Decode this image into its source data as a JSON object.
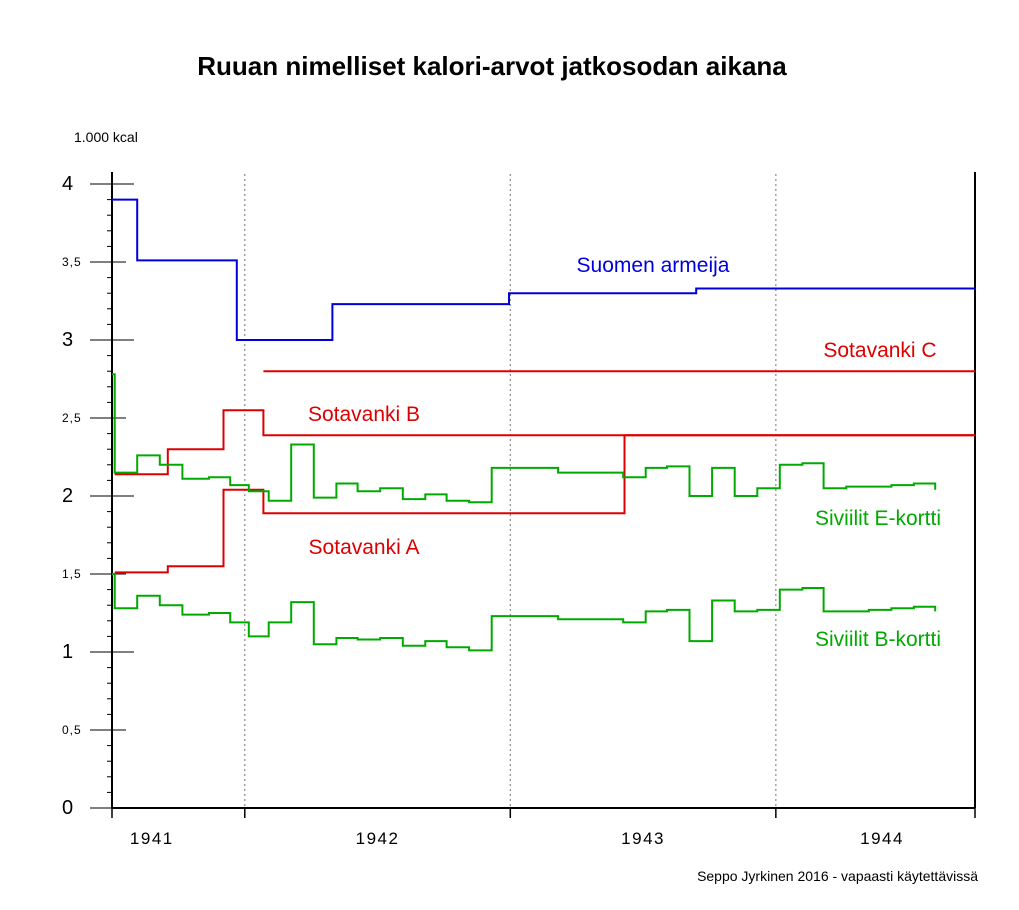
{
  "chart_data": {
    "type": "line",
    "step": "post",
    "title": "Ruuan nimelliset kalori-arvot jatkosodan aikana",
    "y_unit_label": "1.000 kcal",
    "credit": "Seppo Jyrkinen 2016 - vapaasti käytettävissä",
    "ylim": [
      0,
      4.15
    ],
    "x_range": [
      1941.5,
      1944.75
    ],
    "y_ticks": [
      {
        "value": 0,
        "label": "0",
        "major": true
      },
      {
        "value": 0.5,
        "label": "0,5",
        "major": false
      },
      {
        "value": 1,
        "label": "1",
        "major": true
      },
      {
        "value": 1.5,
        "label": "1,5",
        "major": false
      },
      {
        "value": 2,
        "label": "2",
        "major": true
      },
      {
        "value": 2.5,
        "label": "2,5",
        "major": false
      },
      {
        "value": 3,
        "label": "3",
        "major": true
      },
      {
        "value": 3.5,
        "label": "3,5",
        "major": false
      },
      {
        "value": 4,
        "label": "4",
        "major": true
      }
    ],
    "x_ticks": [
      {
        "value": 1941.65,
        "label": "1941"
      },
      {
        "value": 1942.5,
        "label": "1942"
      },
      {
        "value": 1943.5,
        "label": "1943"
      },
      {
        "value": 1944.4,
        "label": "1944"
      }
    ],
    "year_boundaries": [
      1942,
      1943,
      1944
    ],
    "grid": "vertical dotted at year boundaries",
    "colors": {
      "army": "#0000dd",
      "pow": "#dd0000",
      "civilian": "#00aa00"
    },
    "series": [
      {
        "name": "Suomen armeija",
        "color": "#0000dd",
        "x": [
          1941.5,
          1941.595,
          1941.97,
          1942.33,
          1942.995,
          1943.7,
          1944.75
        ],
        "y": [
          3.9,
          3.51,
          3.0,
          3.23,
          3.3,
          3.33,
          3.33
        ]
      },
      {
        "name": "Sotavanki C",
        "color": "#dd0000",
        "x": [
          1942.07,
          1944.75
        ],
        "y": [
          2.8,
          2.8
        ]
      },
      {
        "name": "Sotavanki B",
        "color": "#dd0000",
        "x": [
          1941.51,
          1941.71,
          1941.92,
          1942.07,
          1944.75
        ],
        "y": [
          2.14,
          2.3,
          2.55,
          2.39,
          2.39
        ]
      },
      {
        "name": "Sotavanki A",
        "color": "#dd0000",
        "x": [
          1941.51,
          1941.71,
          1941.92,
          1942.07,
          1943.43,
          1944.75
        ],
        "y": [
          1.51,
          1.55,
          2.04,
          1.89,
          2.39,
          2.39
        ]
      },
      {
        "name": "Siviilit E-kortti",
        "color": "#00aa00",
        "x": [
          1941.5,
          1941.51,
          1941.595,
          1941.68,
          1941.765,
          1941.865,
          1941.945,
          1942.015,
          1942.09,
          1942.175,
          1942.26,
          1942.345,
          1942.425,
          1942.51,
          1942.595,
          1942.68,
          1942.76,
          1942.845,
          1942.93,
          1943.18,
          1943.425,
          1943.51,
          1943.59,
          1943.675,
          1943.76,
          1943.845,
          1943.93,
          1944.015,
          1944.1,
          1944.18,
          1944.265,
          1944.35,
          1944.435,
          1944.52,
          1944.6
        ],
        "y": [
          2.78,
          2.15,
          2.26,
          2.2,
          2.11,
          2.12,
          2.07,
          2.03,
          1.97,
          2.33,
          1.99,
          2.08,
          2.03,
          2.05,
          1.98,
          2.01,
          1.97,
          1.96,
          2.18,
          2.15,
          2.12,
          2.18,
          2.19,
          2.0,
          2.18,
          2.0,
          2.05,
          2.2,
          2.21,
          2.05,
          2.06,
          2.06,
          2.07,
          2.08,
          2.04
        ]
      },
      {
        "name": "Siviilit B-kortti",
        "color": "#00aa00",
        "x": [
          1941.5,
          1941.51,
          1941.595,
          1941.68,
          1941.765,
          1941.865,
          1941.945,
          1942.015,
          1942.09,
          1942.175,
          1942.26,
          1942.345,
          1942.425,
          1942.51,
          1942.595,
          1942.68,
          1942.76,
          1942.845,
          1942.93,
          1943.18,
          1943.425,
          1943.51,
          1943.59,
          1943.675,
          1943.76,
          1943.845,
          1943.93,
          1944.015,
          1944.1,
          1944.18,
          1944.265,
          1944.35,
          1944.435,
          1944.52,
          1944.6
        ],
        "y": [
          1.5,
          1.28,
          1.36,
          1.3,
          1.24,
          1.25,
          1.19,
          1.1,
          1.19,
          1.32,
          1.05,
          1.09,
          1.08,
          1.09,
          1.04,
          1.07,
          1.03,
          1.01,
          1.23,
          1.21,
          1.19,
          1.26,
          1.27,
          1.07,
          1.33,
          1.26,
          1.27,
          1.4,
          1.41,
          1.26,
          1.26,
          1.27,
          1.28,
          1.29,
          1.26
        ]
      }
    ]
  }
}
